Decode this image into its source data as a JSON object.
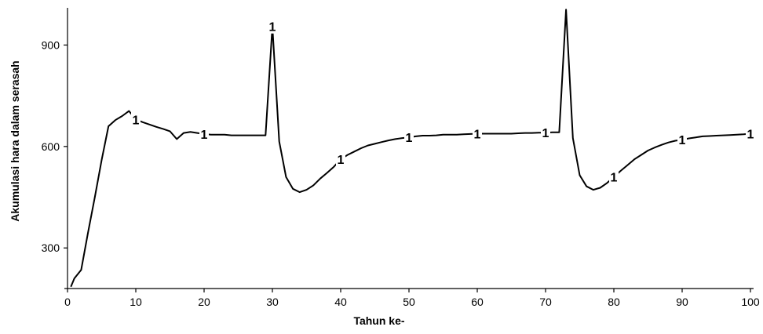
{
  "chart_data": {
    "type": "line",
    "title": "",
    "xlabel": "Tahun ke-",
    "ylabel": "Akumulasi hara dalam serasah",
    "xlim": [
      0,
      100
    ],
    "ylim": [
      180,
      1010
    ],
    "x_ticks": [
      0,
      10,
      20,
      30,
      40,
      50,
      60,
      70,
      80,
      90,
      100
    ],
    "y_ticks": [
      300,
      600,
      900
    ],
    "grid": false,
    "legend": "none",
    "line_color": "#000000",
    "series": [
      {
        "marker_label": "1",
        "points": [
          [
            0.5,
            185
          ],
          [
            1,
            210
          ],
          [
            2,
            235
          ],
          [
            3,
            345
          ],
          [
            4,
            450
          ],
          [
            5,
            560
          ],
          [
            6,
            660
          ],
          [
            7,
            678
          ],
          [
            8,
            690
          ],
          [
            9,
            705
          ],
          [
            10,
            680
          ],
          [
            11,
            672
          ],
          [
            12,
            665
          ],
          [
            13,
            658
          ],
          [
            14,
            652
          ],
          [
            15,
            645
          ],
          [
            16,
            622
          ],
          [
            17,
            640
          ],
          [
            18,
            643
          ],
          [
            19,
            640
          ],
          [
            20,
            637
          ],
          [
            21,
            635
          ],
          [
            22,
            635
          ],
          [
            23,
            635
          ],
          [
            24,
            633
          ],
          [
            25,
            633
          ],
          [
            26,
            633
          ],
          [
            27,
            633
          ],
          [
            28,
            633
          ],
          [
            29,
            633
          ],
          [
            30,
            955
          ],
          [
            31,
            615
          ],
          [
            32,
            510
          ],
          [
            33,
            475
          ],
          [
            34,
            465
          ],
          [
            35,
            472
          ],
          [
            36,
            485
          ],
          [
            37,
            505
          ],
          [
            38,
            522
          ],
          [
            39,
            540
          ],
          [
            40,
            562
          ],
          [
            41,
            575
          ],
          [
            42,
            585
          ],
          [
            43,
            595
          ],
          [
            44,
            603
          ],
          [
            45,
            608
          ],
          [
            46,
            613
          ],
          [
            47,
            618
          ],
          [
            48,
            622
          ],
          [
            49,
            625
          ],
          [
            50,
            627
          ],
          [
            51,
            630
          ],
          [
            52,
            632
          ],
          [
            53,
            632
          ],
          [
            54,
            633
          ],
          [
            55,
            635
          ],
          [
            56,
            635
          ],
          [
            57,
            635
          ],
          [
            58,
            636
          ],
          [
            59,
            637
          ],
          [
            60,
            638
          ],
          [
            61,
            638
          ],
          [
            62,
            638
          ],
          [
            63,
            638
          ],
          [
            64,
            638
          ],
          [
            65,
            638
          ],
          [
            66,
            639
          ],
          [
            67,
            640
          ],
          [
            68,
            640
          ],
          [
            69,
            641
          ],
          [
            70,
            641
          ],
          [
            71,
            642
          ],
          [
            72,
            642
          ],
          [
            73,
            1005
          ],
          [
            74,
            625
          ],
          [
            75,
            515
          ],
          [
            76,
            482
          ],
          [
            77,
            472
          ],
          [
            78,
            478
          ],
          [
            79,
            492
          ],
          [
            80,
            510
          ],
          [
            81,
            528
          ],
          [
            82,
            545
          ],
          [
            83,
            562
          ],
          [
            84,
            575
          ],
          [
            85,
            588
          ],
          [
            86,
            597
          ],
          [
            87,
            605
          ],
          [
            88,
            612
          ],
          [
            89,
            617
          ],
          [
            90,
            620
          ],
          [
            91,
            624
          ],
          [
            92,
            627
          ],
          [
            93,
            630
          ],
          [
            94,
            631
          ],
          [
            95,
            632
          ],
          [
            96,
            633
          ],
          [
            97,
            634
          ],
          [
            98,
            635
          ],
          [
            99,
            636
          ],
          [
            100,
            638
          ]
        ],
        "marker_x": [
          10,
          20,
          30,
          40,
          50,
          60,
          70,
          80,
          90,
          100
        ]
      }
    ]
  }
}
